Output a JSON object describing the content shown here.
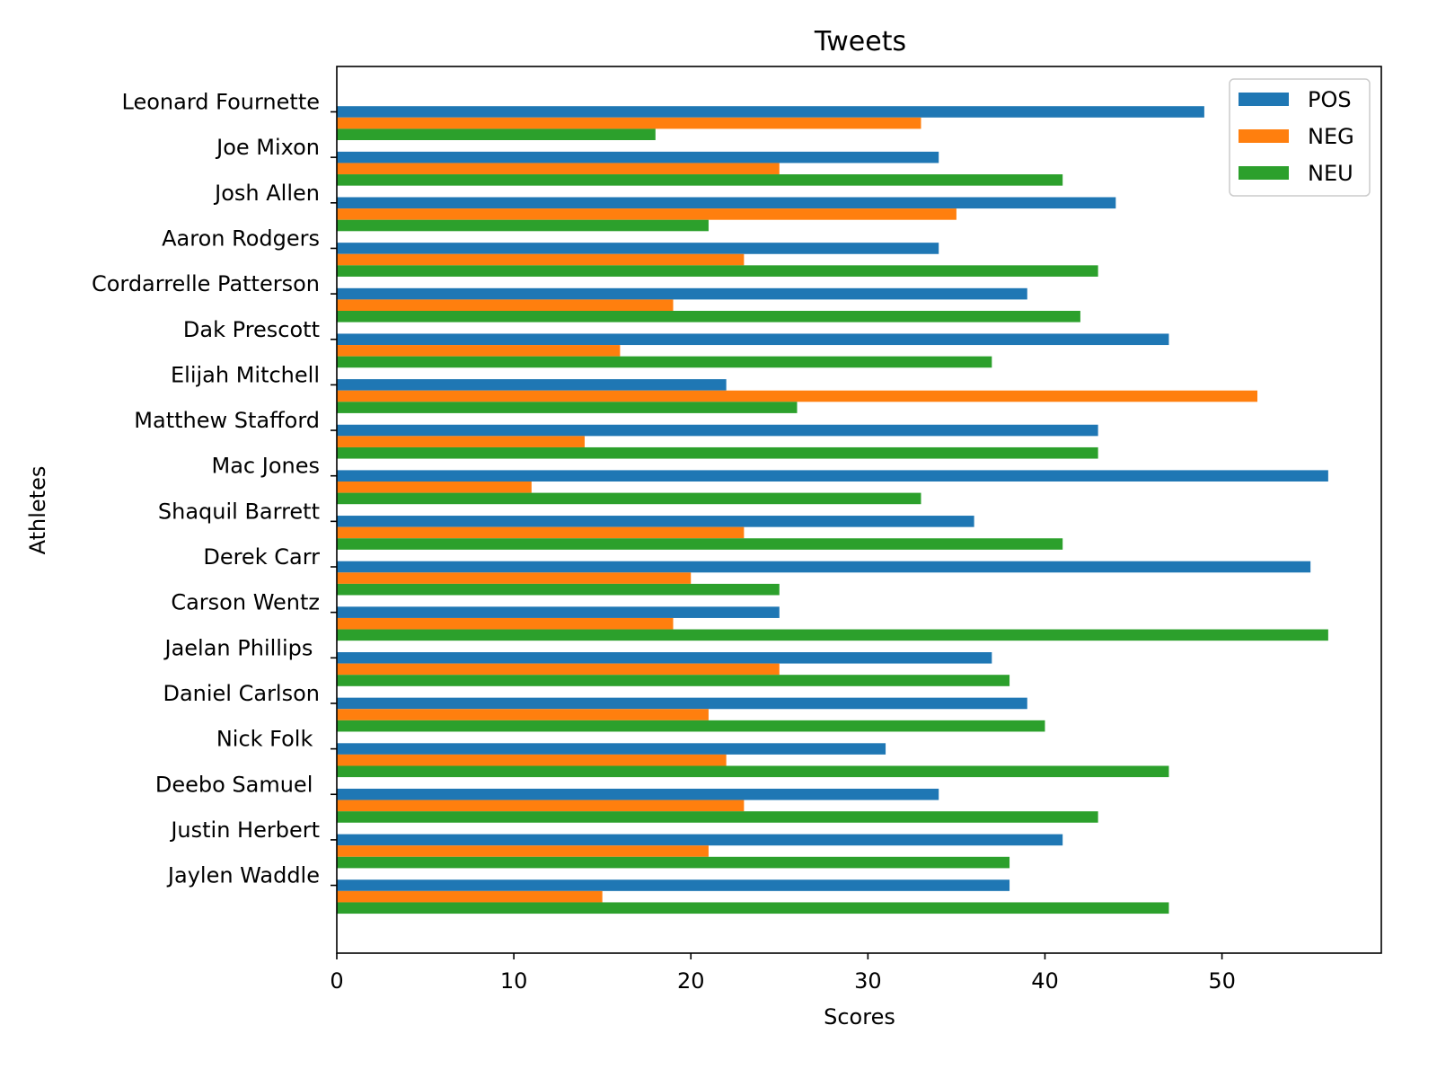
{
  "chart_data": {
    "type": "bar",
    "orientation": "horizontal",
    "title": "Tweets",
    "xlabel": "Scores",
    "ylabel": "Athletes",
    "xlim": [
      0,
      59
    ],
    "xticks": [
      0,
      10,
      20,
      30,
      40,
      50
    ],
    "grid": false,
    "legend_position": "top-right",
    "categories": [
      "Leonard Fournette",
      "Joe Mixon",
      "Josh Allen",
      "Aaron Rodgers",
      "Cordarrelle Patterson",
      "Dak Prescott",
      "Elijah Mitchell",
      "Matthew Stafford",
      "Mac Jones",
      "Shaquil Barrett",
      "Derek Carr",
      "Carson Wentz",
      "Jaelan Phillips ",
      "Daniel Carlson",
      "Nick Folk ",
      "Deebo Samuel ",
      "Justin Herbert",
      "Jaylen Waddle"
    ],
    "series": [
      {
        "name": "POS",
        "color": "#1f77b4",
        "values": [
          49,
          34,
          44,
          34,
          39,
          47,
          22,
          43,
          56,
          36,
          55,
          25,
          37,
          39,
          31,
          34,
          41,
          38
        ]
      },
      {
        "name": "NEG",
        "color": "#ff7f0e",
        "values": [
          33,
          25,
          35,
          23,
          19,
          16,
          52,
          14,
          11,
          23,
          20,
          19,
          25,
          21,
          22,
          23,
          21,
          15
        ]
      },
      {
        "name": "NEU",
        "color": "#2ca02c",
        "values": [
          18,
          41,
          21,
          43,
          42,
          37,
          26,
          43,
          33,
          41,
          25,
          56,
          38,
          40,
          47,
          43,
          38,
          47
        ]
      }
    ]
  }
}
